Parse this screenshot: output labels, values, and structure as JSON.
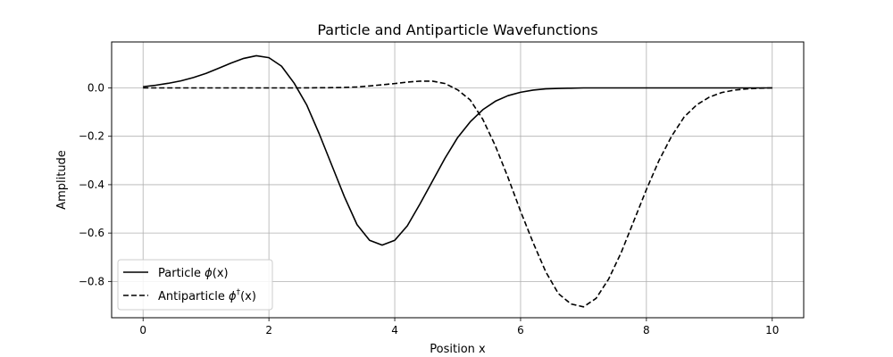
{
  "chart_data": {
    "type": "line",
    "title": "Particle and Antiparticle Wavefunctions",
    "xlabel": "Position x",
    "ylabel": "Amplitude",
    "xlim": [
      -0.5,
      10.5
    ],
    "ylim": [
      -0.95,
      0.19
    ],
    "xticks": [
      0,
      2,
      4,
      6,
      8,
      10
    ],
    "xtick_labels": [
      "0",
      "2",
      "4",
      "6",
      "8",
      "10"
    ],
    "yticks": [
      0.0,
      -0.2,
      -0.4,
      -0.6,
      -0.8
    ],
    "ytick_labels": [
      "0.0",
      "−0.2",
      "−0.4",
      "−0.6",
      "−0.8"
    ],
    "grid": true,
    "legend_position": "lower-left",
    "legend": [
      {
        "text": "Particle ",
        "math": "ϕ",
        "sup": "",
        "tail": "(x)"
      },
      {
        "text": "Antiparticle ",
        "math": "ϕ",
        "sup": "†",
        "tail": "(x)"
      }
    ],
    "series": [
      {
        "name": "Particle ϕ(x)",
        "style": "solid",
        "color": "#000000",
        "x": [
          0,
          0.2,
          0.4,
          0.6,
          0.8,
          1.0,
          1.2,
          1.4,
          1.6,
          1.8,
          2.0,
          2.2,
          2.4,
          2.6,
          2.8,
          3.0,
          3.2,
          3.4,
          3.6,
          3.8,
          4.0,
          4.2,
          4.4,
          4.6,
          4.8,
          5.0,
          5.2,
          5.4,
          5.6,
          5.8,
          6.0,
          6.2,
          6.4,
          6.6,
          6.8,
          7.0,
          7.5,
          8.0,
          8.5,
          9.0,
          9.5,
          10.0
        ],
        "y": [
          0.005,
          0.011,
          0.019,
          0.029,
          0.043,
          0.06,
          0.081,
          0.103,
          0.122,
          0.133,
          0.125,
          0.09,
          0.02,
          -0.07,
          -0.19,
          -0.32,
          -0.45,
          -0.565,
          -0.63,
          -0.65,
          -0.63,
          -0.57,
          -0.48,
          -0.385,
          -0.29,
          -0.205,
          -0.14,
          -0.09,
          -0.055,
          -0.032,
          -0.018,
          -0.009,
          -0.004,
          -0.002,
          -0.001,
          0,
          0,
          0,
          0,
          0,
          0,
          0
        ]
      },
      {
        "name": "Antiparticle ϕ†(x)",
        "style": "dashed",
        "color": "#000000",
        "x": [
          0,
          0.5,
          1.0,
          1.5,
          2.0,
          2.5,
          3.0,
          3.2,
          3.4,
          3.6,
          3.8,
          4.0,
          4.2,
          4.4,
          4.6,
          4.8,
          5.0,
          5.2,
          5.4,
          5.6,
          5.8,
          6.0,
          6.2,
          6.4,
          6.6,
          6.8,
          7.0,
          7.2,
          7.4,
          7.6,
          7.8,
          8.0,
          8.2,
          8.4,
          8.6,
          8.8,
          9.0,
          9.2,
          9.4,
          9.6,
          9.8,
          10.0
        ],
        "y": [
          0,
          0,
          0,
          0,
          0,
          0,
          0.001,
          0.002,
          0.004,
          0.008,
          0.013,
          0.018,
          0.024,
          0.028,
          0.028,
          0.018,
          -0.008,
          -0.05,
          -0.13,
          -0.24,
          -0.37,
          -0.51,
          -0.64,
          -0.76,
          -0.85,
          -0.893,
          -0.905,
          -0.87,
          -0.79,
          -0.68,
          -0.55,
          -0.42,
          -0.3,
          -0.2,
          -0.12,
          -0.07,
          -0.038,
          -0.019,
          -0.009,
          -0.004,
          -0.001,
          0
        ]
      }
    ]
  }
}
